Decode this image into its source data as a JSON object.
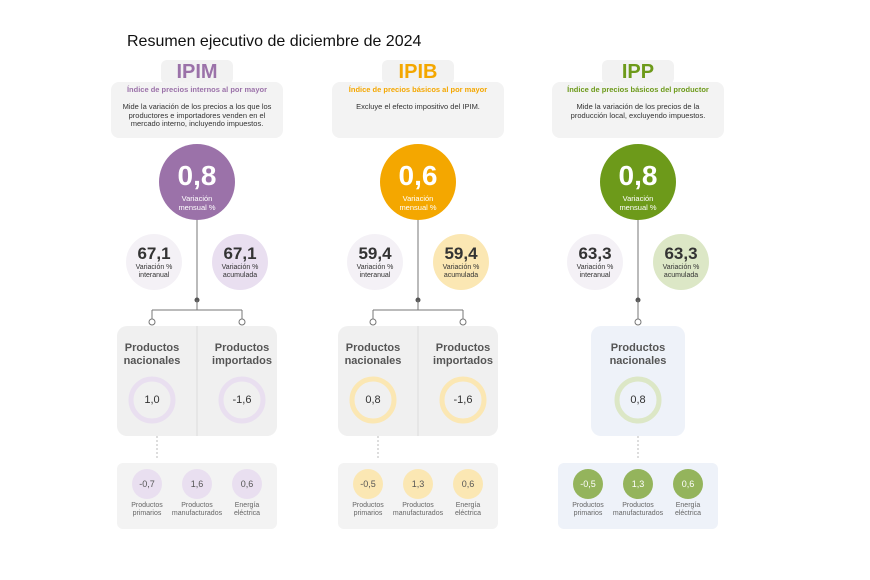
{
  "header": {
    "title": "Resumen ejecutivo de diciembre de 2024"
  },
  "panels": [
    {
      "code": "IPIM",
      "name": "Índice de precios internos al por mayor",
      "color": "#9b72a9",
      "light": "#e9dff0",
      "description": "Mide la variación de los precios a los que los productores e importadores venden en el mercado interno, incluyendo impuestos.",
      "main": {
        "value": "0,8",
        "label": "Variación mensual %"
      },
      "side": [
        {
          "value": "67,1",
          "label": "Variación % interanual"
        },
        {
          "value": "67,1",
          "label": "Variación % acumulada"
        }
      ],
      "products": [
        {
          "name": "Productos nacionales",
          "value": "1,0"
        },
        {
          "name": "Productos importados",
          "value": "-1,6"
        }
      ],
      "breakdown": [
        {
          "value": "-0,7",
          "label": "Productos primarios"
        },
        {
          "value": "1,6",
          "label": "Productos manufacturados"
        },
        {
          "value": "0,6",
          "label": "Energía eléctrica"
        }
      ]
    },
    {
      "code": "IPIB",
      "name": "Índice de precios básicos al por mayor",
      "color": "#f4a700",
      "light": "#fbe7b3",
      "description": "Excluye el efecto impositivo del IPIM.",
      "main": {
        "value": "0,6",
        "label": "Variación mensual %"
      },
      "side": [
        {
          "value": "59,4",
          "label": "Variación % interanual"
        },
        {
          "value": "59,4",
          "label": "Variación % acumulada"
        }
      ],
      "products": [
        {
          "name": "Productos nacionales",
          "value": "0,8"
        },
        {
          "name": "Productos importados",
          "value": "-1,6"
        }
      ],
      "breakdown": [
        {
          "value": "-0,5",
          "label": "Productos primarios"
        },
        {
          "value": "1,3",
          "label": "Productos manufacturados"
        },
        {
          "value": "0,6",
          "label": "Energía eléctrica"
        }
      ]
    },
    {
      "code": "IPP",
      "name": "Índice de precios básicos del productor",
      "color": "#6d9a1a",
      "light": "#dce7c6",
      "description": "Mide la variación de los precios de la producción local, excluyendo impuestos.",
      "main": {
        "value": "0,8",
        "label": "Variación mensual %"
      },
      "side": [
        {
          "value": "63,3",
          "label": "Variación % interanual"
        },
        {
          "value": "63,3",
          "label": "Variación % acumulada"
        }
      ],
      "products": [
        {
          "name": "Productos nacionales",
          "value": "0,8"
        }
      ],
      "breakdown": [
        {
          "value": "-0,5",
          "label": "Productos primarios"
        },
        {
          "value": "1,3",
          "label": "Productos manufacturados"
        },
        {
          "value": "0,6",
          "label": "Energía eléctrica"
        }
      ]
    }
  ]
}
